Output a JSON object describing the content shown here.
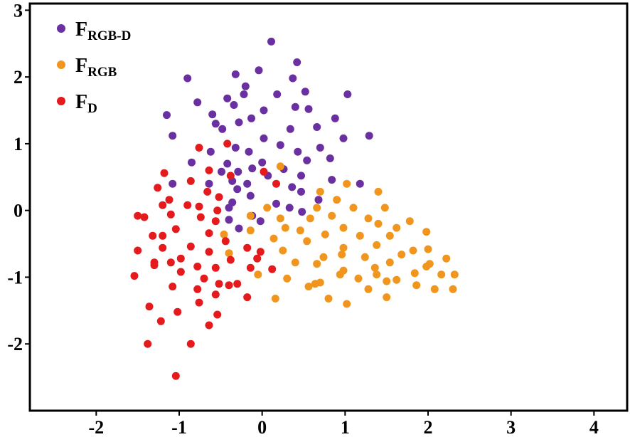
{
  "chart_data": {
    "type": "scatter",
    "title": "",
    "xlabel": "",
    "ylabel": "",
    "xlim": [
      -2.8,
      4.4
    ],
    "ylim": [
      -3.0,
      3.1
    ],
    "x_ticks": [
      "-2",
      "-1",
      "0",
      "1",
      "2",
      "3",
      "4"
    ],
    "x_tick_values": [
      -2,
      -1,
      0,
      1,
      2,
      3,
      4
    ],
    "y_ticks": [
      "3",
      "2",
      "1",
      "0",
      "-1",
      "-2"
    ],
    "y_tick_values": [
      3,
      2,
      1,
      0,
      -1,
      -2
    ],
    "grid": false,
    "legend_position": "top-left",
    "series": [
      {
        "name": "F_RGB-D",
        "label_main": "F",
        "label_sub": "RGB-D",
        "color": "#6a2fa0",
        "points": [
          [
            0.11,
            2.53
          ],
          [
            0.42,
            2.22
          ],
          [
            -0.32,
            2.04
          ],
          [
            -0.04,
            2.1
          ],
          [
            0.37,
            1.98
          ],
          [
            -0.9,
            1.98
          ],
          [
            -0.2,
            1.86
          ],
          [
            0.52,
            1.78
          ],
          [
            0.18,
            1.74
          ],
          [
            1.03,
            1.74
          ],
          [
            -0.22,
            1.74
          ],
          [
            -0.42,
            1.68
          ],
          [
            -0.78,
            1.62
          ],
          [
            -0.34,
            1.58
          ],
          [
            0.4,
            1.55
          ],
          [
            0.56,
            1.52
          ],
          [
            0.02,
            1.5
          ],
          [
            -1.15,
            1.43
          ],
          [
            -0.6,
            1.44
          ],
          [
            -0.13,
            1.38
          ],
          [
            0.88,
            1.38
          ],
          [
            -0.56,
            1.3
          ],
          [
            -0.28,
            1.32
          ],
          [
            0.66,
            1.25
          ],
          [
            -0.48,
            1.22
          ],
          [
            0.34,
            1.22
          ],
          [
            -1.08,
            1.12
          ],
          [
            1.29,
            1.12
          ],
          [
            0.02,
            1.08
          ],
          [
            0.98,
            1.08
          ],
          [
            0.22,
            0.98
          ],
          [
            -0.32,
            0.94
          ],
          [
            0.7,
            0.94
          ],
          [
            -0.62,
            0.88
          ],
          [
            0.43,
            0.88
          ],
          [
            -0.16,
            0.88
          ],
          [
            0.82,
            0.78
          ],
          [
            0.54,
            0.75
          ],
          [
            -0.85,
            0.72
          ],
          [
            -0.42,
            0.7
          ],
          [
            0.0,
            0.72
          ],
          [
            -0.12,
            0.63
          ],
          [
            0.26,
            0.62
          ],
          [
            -0.49,
            0.58
          ],
          [
            -0.29,
            0.58
          ],
          [
            0.47,
            0.52
          ],
          [
            0.07,
            0.52
          ],
          [
            -1.08,
            0.4
          ],
          [
            -0.36,
            0.44
          ],
          [
            -0.64,
            0.4
          ],
          [
            -0.18,
            0.4
          ],
          [
            0.36,
            0.35
          ],
          [
            0.84,
            0.46
          ],
          [
            1.18,
            0.4
          ],
          [
            -0.3,
            0.32
          ],
          [
            0.47,
            0.28
          ],
          [
            -0.14,
            0.22
          ],
          [
            0.68,
            0.16
          ],
          [
            -0.36,
            0.12
          ],
          [
            0.17,
            0.1
          ],
          [
            -0.4,
            0.04
          ],
          [
            0.33,
            0.04
          ],
          [
            0.48,
            -0.02
          ],
          [
            -0.12,
            -0.08
          ],
          [
            -0.4,
            -0.14
          ],
          [
            -0.02,
            -0.16
          ],
          [
            -0.28,
            -0.27
          ]
        ]
      },
      {
        "name": "F_RGB",
        "label_main": "F",
        "label_sub": "RGB",
        "color": "#f0961e",
        "points": [
          [
            0.22,
            0.66
          ],
          [
            1.02,
            0.4
          ],
          [
            0.7,
            0.28
          ],
          [
            1.4,
            0.28
          ],
          [
            0.9,
            0.16
          ],
          [
            0.66,
            0.04
          ],
          [
            1.1,
            0.04
          ],
          [
            1.48,
            0.04
          ],
          [
            0.06,
            0.04
          ],
          [
            -0.14,
            -0.08
          ],
          [
            0.22,
            -0.12
          ],
          [
            0.58,
            -0.12
          ],
          [
            0.84,
            -0.08
          ],
          [
            1.28,
            -0.12
          ],
          [
            1.78,
            -0.16
          ],
          [
            1.4,
            -0.2
          ],
          [
            0.28,
            -0.26
          ],
          [
            0.98,
            -0.26
          ],
          [
            1.62,
            -0.26
          ],
          [
            -0.14,
            -0.3
          ],
          [
            0.46,
            -0.3
          ],
          [
            1.98,
            -0.32
          ],
          [
            -0.46,
            -0.36
          ],
          [
            0.76,
            -0.36
          ],
          [
            1.18,
            -0.38
          ],
          [
            1.54,
            -0.38
          ],
          [
            0.14,
            -0.42
          ],
          [
            0.54,
            -0.46
          ],
          [
            0.98,
            -0.56
          ],
          [
            1.38,
            -0.52
          ],
          [
            1.82,
            -0.6
          ],
          [
            -0.4,
            -0.64
          ],
          [
            0.25,
            -0.6
          ],
          [
            0.96,
            -0.66
          ],
          [
            1.68,
            -0.66
          ],
          [
            2.0,
            -0.58
          ],
          [
            0.74,
            -0.7
          ],
          [
            1.24,
            -0.7
          ],
          [
            2.22,
            -0.72
          ],
          [
            0.4,
            -0.78
          ],
          [
            0.66,
            -0.8
          ],
          [
            1.54,
            -0.78
          ],
          [
            1.98,
            -0.84
          ],
          [
            1.36,
            -0.86
          ],
          [
            0.98,
            -0.9
          ],
          [
            2.02,
            -0.8
          ],
          [
            1.84,
            -0.94
          ],
          [
            -0.05,
            -0.96
          ],
          [
            0.3,
            -1.02
          ],
          [
            0.94,
            -0.96
          ],
          [
            1.38,
            -0.96
          ],
          [
            1.62,
            -1.04
          ],
          [
            2.16,
            -0.96
          ],
          [
            2.32,
            -0.96
          ],
          [
            0.7,
            -1.08
          ],
          [
            1.16,
            -1.02
          ],
          [
            1.5,
            -1.06
          ],
          [
            0.56,
            -1.14
          ],
          [
            0.64,
            -1.1
          ],
          [
            1.28,
            -1.18
          ],
          [
            1.86,
            -1.12
          ],
          [
            2.08,
            -1.18
          ],
          [
            2.3,
            -1.18
          ],
          [
            0.16,
            -1.32
          ],
          [
            0.8,
            -1.32
          ],
          [
            1.5,
            -1.3
          ],
          [
            1.02,
            -1.4
          ]
        ]
      },
      {
        "name": "F_D",
        "label_main": "F",
        "label_sub": "D",
        "color": "#e41a1c",
        "points": [
          [
            -0.42,
            1.0
          ],
          [
            -0.76,
            0.94
          ],
          [
            -1.18,
            0.56
          ],
          [
            -0.64,
            0.6
          ],
          [
            0.02,
            0.58
          ],
          [
            -0.38,
            0.52
          ],
          [
            -0.86,
            0.44
          ],
          [
            0.17,
            0.4
          ],
          [
            -1.26,
            0.34
          ],
          [
            -0.66,
            0.28
          ],
          [
            -1.12,
            0.16
          ],
          [
            -0.52,
            0.2
          ],
          [
            -1.2,
            0.08
          ],
          [
            -0.9,
            0.08
          ],
          [
            -0.76,
            0.06
          ],
          [
            -0.54,
            0.0
          ],
          [
            -1.5,
            -0.08
          ],
          [
            -1.42,
            -0.1
          ],
          [
            -1.1,
            -0.06
          ],
          [
            -0.74,
            -0.1
          ],
          [
            -0.56,
            -0.16
          ],
          [
            -1.04,
            -0.28
          ],
          [
            -0.64,
            -0.34
          ],
          [
            -1.32,
            -0.38
          ],
          [
            -1.2,
            -0.38
          ],
          [
            -0.44,
            -0.46
          ],
          [
            -0.86,
            -0.54
          ],
          [
            -1.2,
            -0.56
          ],
          [
            -1.5,
            -0.6
          ],
          [
            -0.18,
            -0.56
          ],
          [
            -0.02,
            -0.62
          ],
          [
            -0.64,
            -0.62
          ],
          [
            -0.98,
            -0.72
          ],
          [
            -0.38,
            -0.74
          ],
          [
            -1.3,
            -0.78
          ],
          [
            -1.1,
            -0.78
          ],
          [
            -0.06,
            -0.72
          ],
          [
            -0.78,
            -0.84
          ],
          [
            -0.56,
            -0.86
          ],
          [
            -0.14,
            -0.86
          ],
          [
            0.12,
            -0.88
          ],
          [
            -1.3,
            -0.82
          ],
          [
            -0.98,
            -0.92
          ],
          [
            -1.54,
            -0.98
          ],
          [
            -0.7,
            -1.02
          ],
          [
            -0.52,
            -1.1
          ],
          [
            -0.4,
            -1.12
          ],
          [
            -0.3,
            -1.1
          ],
          [
            -1.08,
            -1.14
          ],
          [
            -0.78,
            -1.18
          ],
          [
            -0.56,
            -1.26
          ],
          [
            -0.18,
            -1.3
          ],
          [
            -0.76,
            -1.38
          ],
          [
            -1.36,
            -1.44
          ],
          [
            -1.02,
            -1.52
          ],
          [
            -0.54,
            -1.56
          ],
          [
            -1.22,
            -1.66
          ],
          [
            -0.64,
            -1.72
          ],
          [
            -1.38,
            -2.0
          ],
          [
            -0.86,
            -2.0
          ],
          [
            -1.04,
            -2.48
          ]
        ]
      }
    ]
  }
}
